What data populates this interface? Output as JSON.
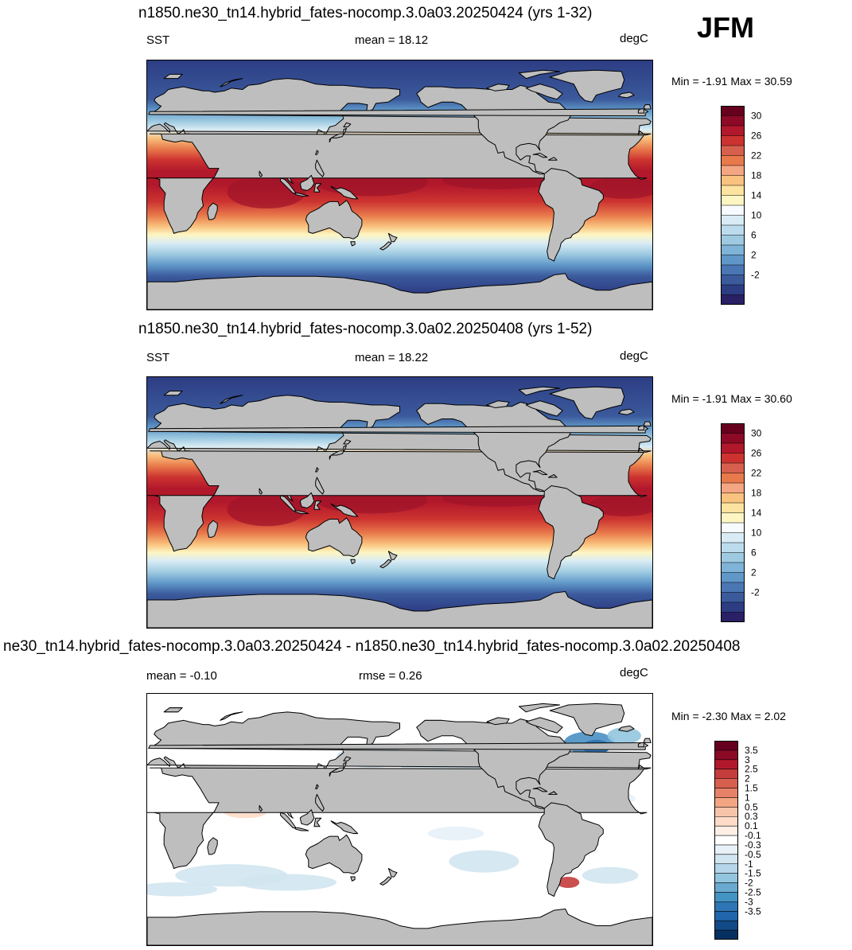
{
  "season": "JFM",
  "panels": [
    {
      "title": "n1850.ne30_tn14.hybrid_fates-nocomp.3.0a03.20250424 (yrs 1-32)",
      "left_label": "SST",
      "center_label": "mean =  18.12",
      "units": "degC",
      "minmax": "Min =  -1.91 Max =  30.59",
      "kind": "abs",
      "colorbar": {
        "ticks": [
          "30",
          "26",
          "22",
          "18",
          "14",
          "10",
          "6",
          "2",
          "-2"
        ],
        "colors": [
          "#67001f",
          "#8c0a26",
          "#b2182b",
          "#cc3330",
          "#d6604d",
          "#e8794b",
          "#f4a582",
          "#f9c27e",
          "#fde3a0",
          "#fdf6c3",
          "#f7fbff",
          "#d9ecf5",
          "#bcdcee",
          "#9ecae1",
          "#7fb3d8",
          "#5f97c8",
          "#4a76b4",
          "#3b5a9c",
          "#2d3d84",
          "#2a2065"
        ]
      },
      "chart_data": {
        "type": "heatmap",
        "variable": "SST",
        "units": "degC",
        "mean": 18.12,
        "min": -1.91,
        "max": 30.59,
        "colorbar_ticks": [
          30,
          26,
          22,
          18,
          14,
          10,
          6,
          2,
          -2
        ]
      }
    },
    {
      "title": "n1850.ne30_tn14.hybrid_fates-nocomp.3.0a02.20250408 (yrs 1-52)",
      "left_label": "SST",
      "center_label": "mean =  18.22",
      "units": "degC",
      "minmax": "Min =  -1.91 Max =  30.60",
      "kind": "abs",
      "colorbar": {
        "ticks": [
          "30",
          "26",
          "22",
          "18",
          "14",
          "10",
          "6",
          "2",
          "-2"
        ],
        "colors": [
          "#67001f",
          "#8c0a26",
          "#b2182b",
          "#cc3330",
          "#d6604d",
          "#e8794b",
          "#f4a582",
          "#f9c27e",
          "#fde3a0",
          "#fdf6c3",
          "#f7fbff",
          "#d9ecf5",
          "#bcdcee",
          "#9ecae1",
          "#7fb3d8",
          "#5f97c8",
          "#4a76b4",
          "#3b5a9c",
          "#2d3d84",
          "#2a2065"
        ]
      },
      "chart_data": {
        "type": "heatmap",
        "variable": "SST",
        "units": "degC",
        "mean": 18.22,
        "min": -1.91,
        "max": 30.6,
        "colorbar_ticks": [
          30,
          26,
          22,
          18,
          14,
          10,
          6,
          2,
          -2
        ]
      }
    },
    {
      "title": "ne30_tn14.hybrid_fates-nocomp.3.0a03.20250424 - n1850.ne30_tn14.hybrid_fates-nocomp.3.0a02.20250408",
      "left_label": "mean =  -0.10",
      "center_label": "rmse =   0.26",
      "units": "degC",
      "minmax": "Min =  -2.30 Max =   2.02",
      "kind": "diff",
      "colorbar": {
        "ticks": [
          "3.5",
          "3",
          "2.5",
          "2",
          "1.5",
          "1",
          "0.5",
          "0.3",
          "0.1",
          "-0.1",
          "-0.3",
          "-0.5",
          "-1",
          "-1.5",
          "-2",
          "-2.5",
          "-3",
          "-3.5"
        ],
        "colors": [
          "#67001f",
          "#8c0a26",
          "#b2182b",
          "#c43c3c",
          "#d6604d",
          "#e58267",
          "#f4a582",
          "#f7c4aa",
          "#fddbc7",
          "#fdefe6",
          "#ffffff",
          "#e8f1f8",
          "#d1e5f0",
          "#b4d5ea",
          "#92c5de",
          "#6aa9d0",
          "#4393c3",
          "#2f74b4",
          "#2166ac",
          "#124a87",
          "#053061"
        ]
      },
      "chart_data": {
        "type": "heatmap",
        "variable": "SST difference",
        "units": "degC",
        "mean": -0.1,
        "rmse": 0.26,
        "min": -2.3,
        "max": 2.02,
        "colorbar_ticks": [
          3.5,
          3,
          2.5,
          2,
          1.5,
          1,
          0.5,
          0.3,
          0.1,
          -0.1,
          -0.3,
          -0.5,
          -1,
          -1.5,
          -2,
          -2.5,
          -3,
          -3.5
        ]
      }
    }
  ],
  "colors": {
    "land": "#bebebe",
    "coast": "#000000"
  }
}
